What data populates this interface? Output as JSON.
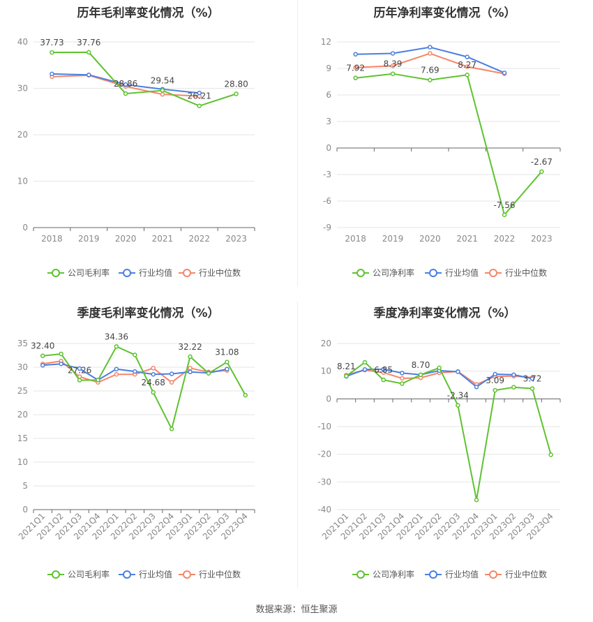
{
  "footer": {
    "source": "数据来源：恒生聚源"
  },
  "chart_data": [
    {
      "type": "line",
      "title": "历年毛利率变化情况（%）",
      "categories": [
        "2018",
        "2019",
        "2020",
        "2021",
        "2022",
        "2023"
      ],
      "ylim": [
        0,
        40
      ],
      "yticks": [
        0,
        10,
        20,
        30,
        40
      ],
      "series": [
        {
          "name": "公司毛利率",
          "color": "#5ec22f",
          "values": [
            37.73,
            37.76,
            28.86,
            29.54,
            26.21,
            28.8
          ]
        },
        {
          "name": "行业均值",
          "color": "#4a7fe0",
          "values": [
            33.1,
            32.9,
            30.8,
            29.8,
            29.0,
            null
          ]
        },
        {
          "name": "行业中位数",
          "color": "#f5866a",
          "values": [
            32.5,
            32.8,
            30.4,
            28.7,
            28.3,
            null
          ]
        }
      ],
      "data_labels": [
        "37.73",
        "37.76",
        "28.86",
        "29.54",
        "26.21",
        "28.80"
      ],
      "grid": true,
      "legend": "bottom"
    },
    {
      "type": "line",
      "title": "历年净利率变化情况（%）",
      "categories": [
        "2018",
        "2019",
        "2020",
        "2021",
        "2022",
        "2023"
      ],
      "ylim": [
        -9,
        12
      ],
      "yticks": [
        -9,
        -6,
        -3,
        0,
        3,
        6,
        9,
        12
      ],
      "series": [
        {
          "name": "公司净利率",
          "color": "#5ec22f",
          "values": [
            7.92,
            8.39,
            7.69,
            8.27,
            -7.56,
            -2.67
          ]
        },
        {
          "name": "行业均值",
          "color": "#4a7fe0",
          "values": [
            10.6,
            10.7,
            11.4,
            10.3,
            8.5,
            null
          ]
        },
        {
          "name": "行业中位数",
          "color": "#f5866a",
          "values": [
            9.1,
            9.3,
            10.7,
            9.2,
            8.4,
            null
          ]
        }
      ],
      "data_labels": [
        "7.92",
        "8.39",
        "7.69",
        "8.27",
        "-7.56",
        "-2.67"
      ],
      "grid": true,
      "legend": "bottom"
    },
    {
      "type": "line",
      "title": "季度毛利率变化情况（%）",
      "categories": [
        "2021Q1",
        "2021Q2",
        "2021Q3",
        "2021Q4",
        "2022Q1",
        "2022Q2",
        "2022Q3",
        "2022Q4",
        "2023Q1",
        "2023Q2",
        "2023Q3",
        "2023Q4"
      ],
      "ylim": [
        0,
        35
      ],
      "yticks": [
        0,
        5,
        10,
        15,
        20,
        25,
        30,
        35
      ],
      "series": [
        {
          "name": "公司毛利率",
          "color": "#5ec22f",
          "values": [
            32.4,
            32.8,
            27.26,
            27.3,
            34.36,
            32.6,
            24.68,
            17.0,
            32.22,
            28.7,
            31.08,
            24.1
          ]
        },
        {
          "name": "行业均值",
          "color": "#4a7fe0",
          "values": [
            30.4,
            30.7,
            29.7,
            27.3,
            29.6,
            29.1,
            28.5,
            28.6,
            29.0,
            28.8,
            29.6,
            null
          ]
        },
        {
          "name": "行业中位数",
          "color": "#f5866a",
          "values": [
            30.7,
            31.3,
            28.0,
            26.8,
            28.5,
            28.5,
            29.8,
            26.8,
            29.8,
            29.0,
            29.3,
            null
          ]
        }
      ],
      "data_labels": [
        "32.40",
        "",
        "27.26",
        "",
        "34.36",
        "",
        "24.68",
        "",
        "32.22",
        "",
        "31.08",
        ""
      ],
      "grid": true,
      "legend": "bottom"
    },
    {
      "type": "line",
      "title": "季度净利率变化情况（%）",
      "categories": [
        "2021Q1",
        "2021Q2",
        "2021Q3",
        "2021Q4",
        "2022Q1",
        "2022Q2",
        "2022Q3",
        "2022Q4",
        "2023Q1",
        "2023Q2",
        "2023Q3",
        "2023Q4"
      ],
      "ylim": [
        -40,
        20
      ],
      "yticks": [
        -40,
        -30,
        -20,
        -10,
        0,
        10,
        20
      ],
      "series": [
        {
          "name": "公司净利率",
          "color": "#5ec22f",
          "values": [
            8.21,
            13.2,
            6.85,
            5.5,
            8.7,
            11.2,
            -2.34,
            -36.5,
            3.09,
            4.2,
            3.72,
            -20.2
          ]
        },
        {
          "name": "行业均值",
          "color": "#4a7fe0",
          "values": [
            8.1,
            10.6,
            10.7,
            9.3,
            8.7,
            10.2,
            9.8,
            4.3,
            8.9,
            8.7,
            7.3,
            null
          ]
        },
        {
          "name": "行业中位数",
          "color": "#f5866a",
          "values": [
            8.6,
            10.4,
            9.5,
            7.4,
            7.6,
            9.4,
            9.9,
            5.2,
            8.1,
            8.2,
            7.7,
            null
          ]
        }
      ],
      "data_labels": [
        "8.21",
        "",
        "6.85",
        "",
        "8.70",
        "",
        "-2.34",
        "",
        "3.09",
        "",
        "3.72",
        ""
      ],
      "grid": true,
      "legend": "bottom"
    }
  ]
}
